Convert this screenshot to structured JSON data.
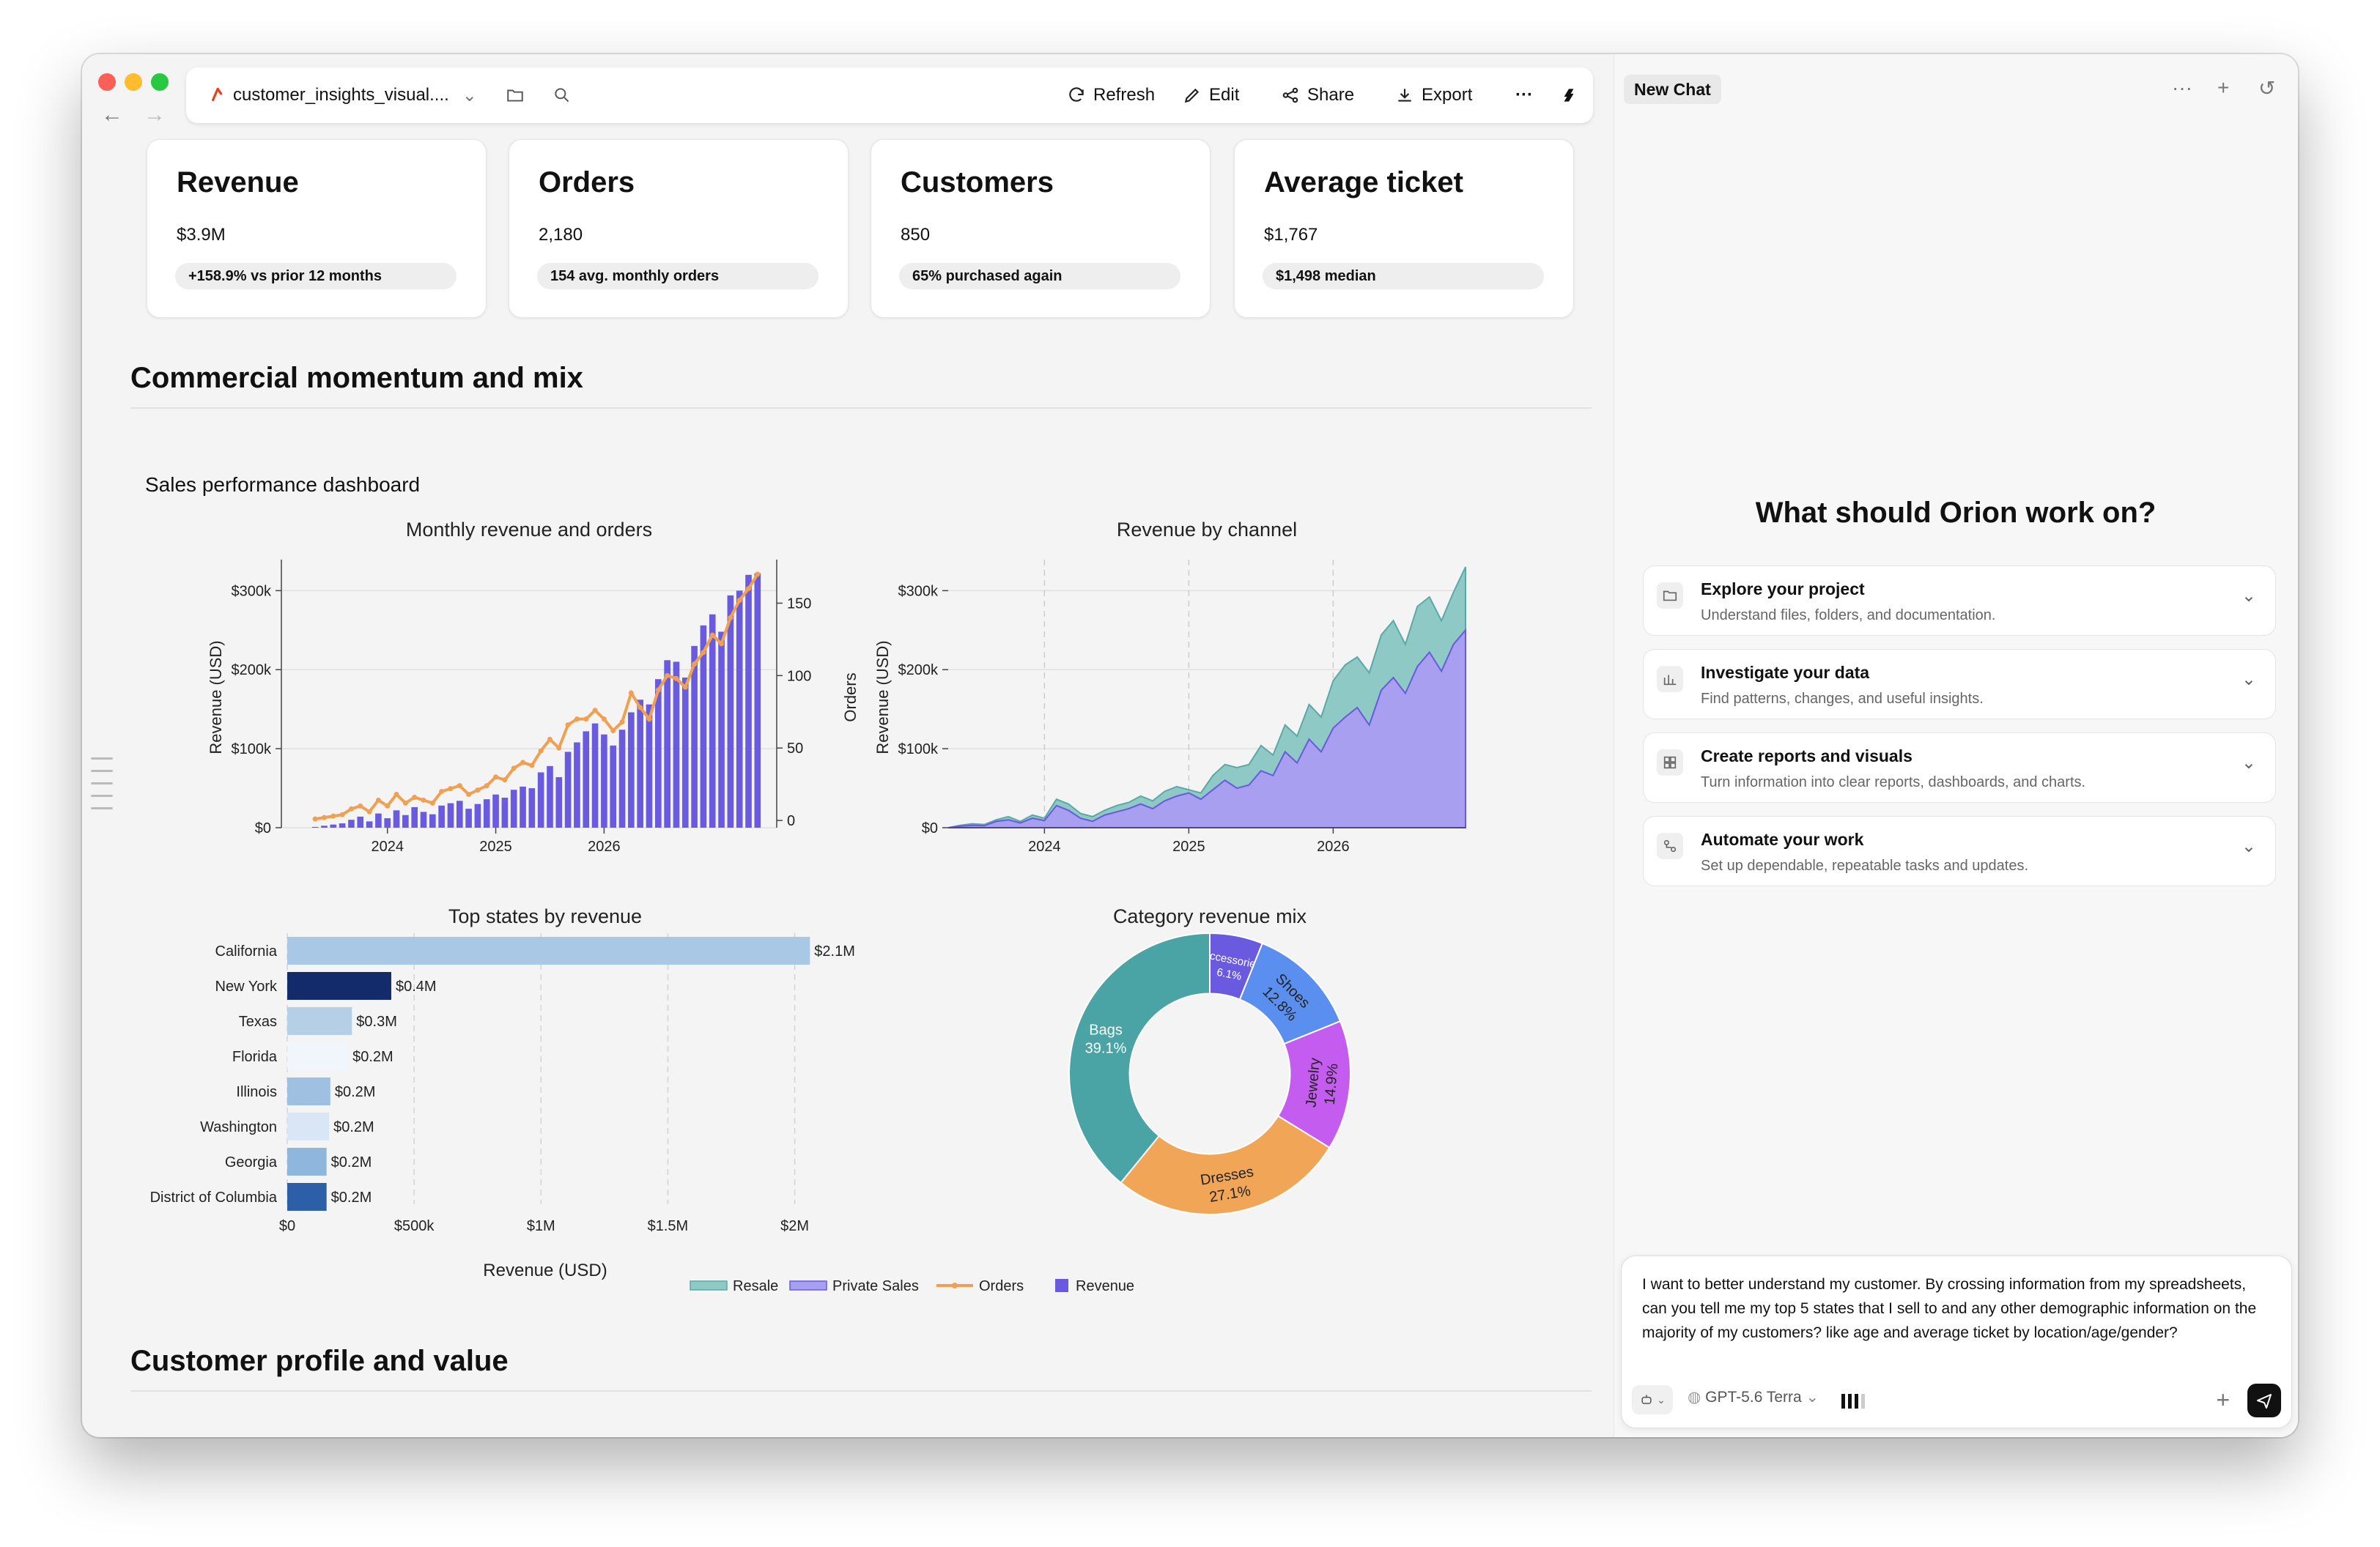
{
  "toolbar": {
    "file_name": "customer_insights_visual....",
    "refresh": "Refresh",
    "edit": "Edit",
    "share": "Share",
    "export": "Export",
    "more": "···"
  },
  "kpis": [
    {
      "title": "Revenue",
      "value": "$3.9M",
      "note": "+158.9% vs prior 12 months"
    },
    {
      "title": "Orders",
      "value": "2,180",
      "note": "154 avg. monthly orders"
    },
    {
      "title": "Customers",
      "value": "850",
      "note": "65% purchased again"
    },
    {
      "title": "Average ticket",
      "value": "$1,767",
      "note": "$1,498 median"
    }
  ],
  "sections": {
    "commercial": "Commercial momentum and mix",
    "customer": "Customer profile and value"
  },
  "dashboard_title": "Sales performance dashboard",
  "chart_data": [
    {
      "type": "bar",
      "title": "Monthly revenue and orders",
      "ylabel": "Revenue (USD)",
      "y2label": "Orders",
      "ylim": [
        0,
        330000
      ],
      "y2lim": [
        -5,
        175
      ],
      "yticks": [
        "$0",
        "$100k",
        "$200k",
        "$300k"
      ],
      "y2ticks": [
        "0",
        "50",
        "100",
        "150"
      ],
      "xticks": [
        "2024",
        "2025",
        "2026"
      ],
      "series": [
        {
          "name": "Revenue",
          "kind": "bar",
          "color": "#6a5ae0",
          "values": [
            1000,
            2500,
            4000,
            5500,
            10000,
            14000,
            8000,
            18000,
            12000,
            22000,
            16000,
            26000,
            20000,
            17000,
            28000,
            31000,
            34000,
            24000,
            30000,
            36000,
            42000,
            38000,
            48000,
            52000,
            50000,
            70000,
            78000,
            64000,
            96000,
            108000,
            122000,
            132000,
            118000,
            104000,
            124000,
            146000,
            162000,
            156000,
            188000,
            212000,
            210000,
            190000,
            230000,
            256000,
            270000,
            248000,
            294000,
            300000,
            320000,
            322000
          ]
        },
        {
          "name": "Orders",
          "kind": "line",
          "color": "#f0a050",
          "values": [
            1,
            2,
            3,
            4,
            8,
            10,
            6,
            14,
            10,
            18,
            12,
            16,
            14,
            12,
            20,
            22,
            24,
            18,
            21,
            24,
            30,
            28,
            36,
            40,
            38,
            48,
            56,
            50,
            66,
            70,
            70,
            76,
            70,
            62,
            68,
            88,
            78,
            70,
            90,
            100,
            98,
            92,
            108,
            116,
            128,
            122,
            140,
            152,
            160,
            170
          ]
        }
      ]
    },
    {
      "type": "area",
      "title": "Revenue by channel",
      "ylabel": "Revenue (USD)",
      "ylim": [
        0,
        330000
      ],
      "yticks": [
        "$0",
        "$100k",
        "$200k",
        "$300k"
      ],
      "xticks": [
        "2024",
        "2025",
        "2026"
      ],
      "series": [
        {
          "name": "Private Sales",
          "color": "#a89ff0",
          "values": [
            0,
            2000,
            3000,
            2500,
            8000,
            10000,
            6000,
            12000,
            9000,
            28000,
            22000,
            12000,
            8000,
            16000,
            20000,
            24000,
            30000,
            24000,
            34000,
            40000,
            44000,
            36000,
            48000,
            60000,
            50000,
            54000,
            72000,
            66000,
            96000,
            82000,
            112000,
            96000,
            126000,
            140000,
            152000,
            130000,
            174000,
            190000,
            170000,
            204000,
            222000,
            198000,
            232000,
            250000
          ]
        },
        {
          "name": "Resale",
          "color": "#8ec9c6",
          "values": [
            0,
            3000,
            5000,
            4000,
            10000,
            14000,
            8000,
            16000,
            12000,
            36000,
            30000,
            18000,
            14000,
            22000,
            28000,
            32000,
            40000,
            34000,
            46000,
            52000,
            48000,
            44000,
            66000,
            80000,
            76000,
            80000,
            104000,
            92000,
            130000,
            116000,
            156000,
            140000,
            186000,
            206000,
            216000,
            196000,
            244000,
            262000,
            232000,
            280000,
            292000,
            262000,
            298000,
            330000
          ]
        }
      ]
    },
    {
      "type": "bar",
      "orientation": "horizontal",
      "title": "Top states by revenue",
      "xlabel": "Revenue (USD)",
      "xlim": [
        0,
        2100000
      ],
      "xticks": [
        "$0",
        "$500k",
        "$1M",
        "$1.5M",
        "$2M"
      ],
      "categories": [
        "California",
        "New York",
        "Texas",
        "Florida",
        "Illinois",
        "Washington",
        "Georgia",
        "District of Columbia"
      ],
      "values": [
        2060000,
        410000,
        255000,
        240000,
        170000,
        165000,
        155000,
        155000
      ],
      "labels": [
        "$2.1M",
        "$0.4M",
        "$0.3M",
        "$0.2M",
        "$0.2M",
        "$0.2M",
        "$0.2M",
        "$0.2M"
      ],
      "colors": [
        "#a8c8e6",
        "#142b6b",
        "#b4cfe6",
        "#f1f6fc",
        "#9fc0e0",
        "#d9e6f5",
        "#8fb6dc",
        "#2c5fa8"
      ]
    },
    {
      "type": "pie",
      "title": "Category revenue mix",
      "hole": 0.57,
      "slices": [
        {
          "label": "Accessories",
          "pct": "6.1%",
          "value": 6.1,
          "color": "#6a5ae0"
        },
        {
          "label": "Shoes",
          "pct": "12.8%",
          "value": 12.8,
          "color": "#5a8ff0"
        },
        {
          "label": "Jewelry",
          "pct": "14.9%",
          "value": 14.9,
          "color": "#c45cf0"
        },
        {
          "label": "Dresses",
          "pct": "27.1%",
          "value": 27.1,
          "color": "#f0a656"
        },
        {
          "label": "Bags",
          "pct": "39.1%",
          "value": 39.1,
          "color": "#4aa3a4"
        }
      ]
    }
  ],
  "legend": [
    {
      "label": "Resale",
      "color": "#8ec9c6",
      "kind": "area"
    },
    {
      "label": "Private Sales",
      "color": "#a89ff0",
      "kind": "area"
    },
    {
      "label": "Orders",
      "color": "#f0a050",
      "kind": "line"
    },
    {
      "label": "Revenue",
      "color": "#6a5ae0",
      "kind": "bar"
    }
  ],
  "right_panel": {
    "new_chat": "New Chat",
    "heading": "What should Orion work on?",
    "suggestions": [
      {
        "title": "Explore your project",
        "desc": "Understand files, folders, and documentation."
      },
      {
        "title": "Investigate your data",
        "desc": "Find patterns, changes, and useful insights."
      },
      {
        "title": "Create reports and visuals",
        "desc": "Turn information into clear reports, dashboards, and charts."
      },
      {
        "title": "Automate your work",
        "desc": "Set up dependable, repeatable tasks and updates."
      }
    ],
    "prompt": "I want to better understand my customer. By crossing information from my spreadsheets, can you tell me my top 5 states that I sell to and any other demographic information on the majority of my customers? like age and average ticket by location/age/gender?",
    "model": "GPT-5.6 Terra"
  }
}
